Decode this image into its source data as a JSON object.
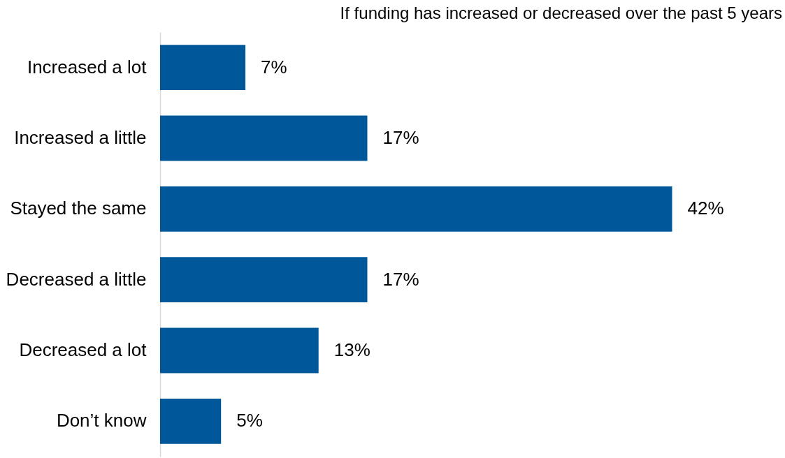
{
  "chart_data": {
    "type": "bar",
    "orientation": "horizontal",
    "title": "If funding has increased or decreased over the past 5 years",
    "categories": [
      "Increased a lot",
      "Increased a little",
      "Stayed the same",
      "Decreased a little",
      "Decreased a lot",
      "Don’t know"
    ],
    "values": [
      7,
      17,
      42,
      17,
      13,
      5
    ],
    "value_labels": [
      "7%",
      "17%",
      "42%",
      "17%",
      "13%",
      "5%"
    ],
    "color": "#00589a"
  }
}
